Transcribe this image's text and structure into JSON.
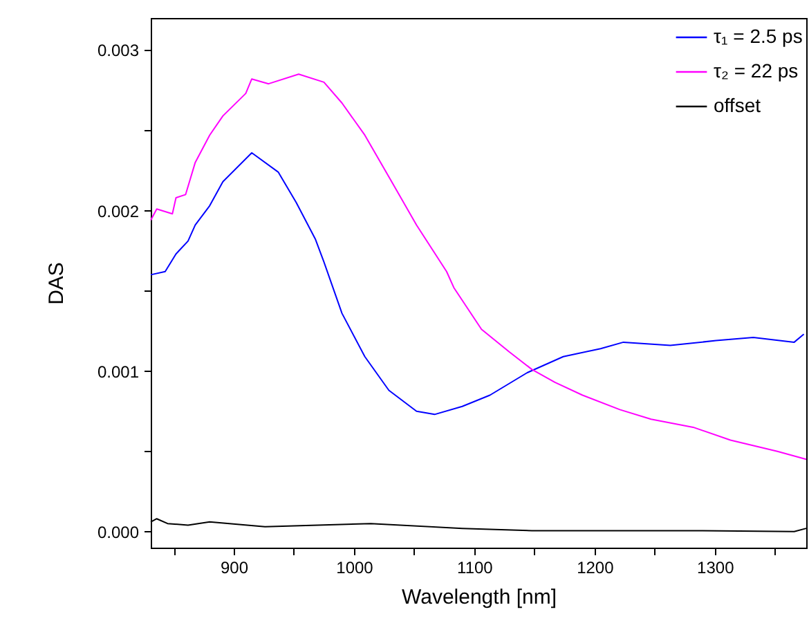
{
  "chart_data": {
    "type": "line",
    "xlabel": "Wavelength [nm]",
    "ylabel": "DAS",
    "xlim": [
      831,
      1376
    ],
    "ylim": [
      -0.0001,
      0.0032
    ],
    "xticks": [
      {
        "value": 850,
        "label": null
      },
      900,
      {
        "value": 950,
        "label": null
      },
      1000,
      {
        "value": 1050,
        "label": null
      },
      1100,
      {
        "value": 1150,
        "label": null
      },
      1200,
      {
        "value": 1250,
        "label": null
      },
      1300,
      {
        "value": 1350,
        "label": null
      }
    ],
    "yticks": [
      {
        "value": 0,
        "label": "0.000"
      },
      {
        "value": 0.0005,
        "label": null
      },
      0.001,
      {
        "value": 0.0015,
        "label": null
      },
      0.002,
      {
        "value": 0.0025,
        "label": null
      },
      0.003
    ],
    "grid": false,
    "legend": "top right",
    "marker": "none",
    "line_style": "solid",
    "series": [
      {
        "name": "τ₁ = 2.5 ps",
        "color": "#0000ff",
        "x": [
          831,
          843,
          852,
          862,
          868,
          880,
          891,
          915,
          937,
          952,
          968,
          975,
          990,
          1009,
          1029,
          1052,
          1067,
          1090,
          1113,
          1144,
          1174,
          1205,
          1224,
          1263,
          1301,
          1332,
          1366,
          1374
        ],
        "values": [
          0.0016,
          0.00162,
          0.00173,
          0.00181,
          0.00191,
          0.00203,
          0.00218,
          0.00236,
          0.00224,
          0.00205,
          0.00182,
          0.00168,
          0.00136,
          0.00109,
          0.00088,
          0.00075,
          0.00073,
          0.00078,
          0.00085,
          0.00099,
          0.00109,
          0.00114,
          0.00118,
          0.00116,
          0.00119,
          0.00121,
          0.00118,
          0.00123
        ]
      },
      {
        "name": "τ₂ = 22 ps",
        "color": "#ff00ff",
        "x": [
          831,
          836,
          849,
          852,
          860,
          868,
          880,
          891,
          910,
          915,
          929,
          954,
          975,
          990,
          1009,
          1029,
          1052,
          1077,
          1083,
          1106,
          1129,
          1148,
          1167,
          1190,
          1221,
          1247,
          1282,
          1313,
          1352,
          1376
        ],
        "values": [
          0.00194,
          0.00201,
          0.00198,
          0.00208,
          0.0021,
          0.0023,
          0.00247,
          0.00259,
          0.00273,
          0.00282,
          0.00279,
          0.00285,
          0.0028,
          0.00267,
          0.00247,
          0.00221,
          0.00191,
          0.00162,
          0.00152,
          0.00126,
          0.00112,
          0.00101,
          0.00093,
          0.00085,
          0.00076,
          0.0007,
          0.00065,
          0.00057,
          0.0005,
          0.00045
        ]
      },
      {
        "name": "offset",
        "color": "#000000",
        "x": [
          831,
          836,
          845,
          862,
          880,
          926,
          1014,
          1090,
          1148,
          1282,
          1366,
          1376
        ],
        "values": [
          6e-05,
          8e-05,
          5e-05,
          4e-05,
          6e-05,
          3e-05,
          5e-05,
          2e-05,
          6e-06,
          6e-06,
          0.0,
          2e-05
        ]
      }
    ]
  }
}
